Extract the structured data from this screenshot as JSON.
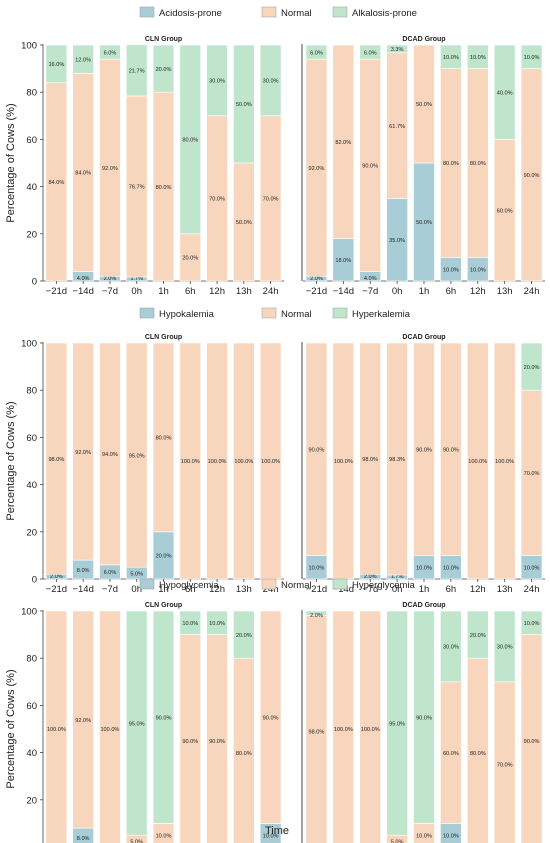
{
  "colors": {
    "low": "#a9cdd6",
    "normal": "#f8d6bd",
    "high": "#bfe6cc",
    "edge": "#ffffff",
    "axis": "#444444",
    "divider": "#666666",
    "text": "#222222"
  },
  "figure": {
    "xlabel": "Time",
    "ylabel": "Percentage of Cows (%)",
    "categories": [
      "−21d",
      "−14d",
      "−7d",
      "0h",
      "1h",
      "6h",
      "12h",
      "13h",
      "24h"
    ],
    "yticks": [
      0,
      20,
      40,
      60,
      80,
      100
    ]
  },
  "chart_data": [
    {
      "type": "bar",
      "stacked": true,
      "legend": [
        "Acidosis-prone",
        "Normal",
        "Alkalosis-prone"
      ],
      "panels": [
        {
          "title": "CLN Group",
          "series": [
            {
              "values": [
                0,
                4.0,
                2.0,
                1.7,
                0,
                0,
                0,
                0,
                0
              ]
            },
            {
              "values": [
                84.0,
                84.0,
                92.0,
                76.7,
                80.0,
                20.0,
                70.0,
                50.0,
                70.0
              ]
            },
            {
              "values": [
                16.0,
                12.0,
                6.0,
                21.7,
                20.0,
                80.0,
                30.0,
                50.0,
                30.0
              ]
            }
          ],
          "labels": [
            [
              "",
              "4.0%",
              "2.0%",
              "1.7%",
              "",
              "",
              "",
              "",
              ""
            ],
            [
              "84.0%",
              "84.0%",
              "92.0%",
              "76.7%",
              "80.0%",
              "20.0%",
              "70.0%",
              "50.0%",
              "70.0%"
            ],
            [
              "16.0%",
              "12.0%",
              "6.0%",
              "21.7%",
              "20.0%",
              "80.0%",
              "30.0%",
              "50.0%",
              "30.0%"
            ]
          ]
        },
        {
          "title": "DCAD Group",
          "series": [
            {
              "values": [
                2.0,
                18.0,
                4.0,
                35.0,
                50.0,
                10.0,
                10.0,
                0,
                0
              ]
            },
            {
              "values": [
                92.0,
                82.0,
                90.0,
                61.7,
                50.0,
                80.0,
                80.0,
                60.0,
                90.0
              ]
            },
            {
              "values": [
                6.0,
                0,
                6.0,
                3.3,
                0,
                10.0,
                10.0,
                40.0,
                10.0
              ]
            }
          ],
          "labels": [
            [
              "2.0%",
              "18.0%",
              "4.0%",
              "35.0%",
              "50.0%",
              "10.0%",
              "10.0%",
              "",
              ""
            ],
            [
              "92.0%",
              "82.0%",
              "90.0%",
              "61.7%",
              "50.0%",
              "80.0%",
              "80.0%",
              "60.0%",
              "90.0%"
            ],
            [
              "6.0%",
              "",
              "6.0%",
              "3.3%",
              "",
              "10.0%",
              "10.0%",
              "40.0%",
              "10.0%"
            ]
          ]
        }
      ]
    },
    {
      "type": "bar",
      "stacked": true,
      "legend": [
        "Hypokalemia",
        "Normal",
        "Hyperkalemia"
      ],
      "panels": [
        {
          "title": "CLN Group",
          "series": [
            {
              "values": [
                2.0,
                8.0,
                6.0,
                5.0,
                20.0,
                0,
                0,
                0,
                0
              ]
            },
            {
              "values": [
                98.0,
                92.0,
                94.0,
                95.0,
                80.0,
                100.0,
                100.0,
                100.0,
                100.0
              ]
            },
            {
              "values": [
                0,
                0,
                0,
                0,
                0,
                0,
                0,
                0,
                0
              ]
            }
          ],
          "labels": [
            [
              "2.0%",
              "8.0%",
              "6.0%",
              "5.0%",
              "20.0%",
              "",
              "",
              "",
              ""
            ],
            [
              "98.0%",
              "92.0%",
              "94.0%",
              "95.0%",
              "80.0%",
              "100.0%",
              "100.0%",
              "100.0%",
              "100.0%"
            ],
            [
              "",
              "",
              "",
              "",
              "",
              "",
              "",
              "",
              ""
            ]
          ]
        },
        {
          "title": "DCAD Group",
          "series": [
            {
              "values": [
                10.0,
                0,
                2.0,
                1.7,
                10.0,
                10.0,
                0,
                0,
                10.0
              ]
            },
            {
              "values": [
                90.0,
                100.0,
                98.0,
                98.3,
                90.0,
                90.0,
                100.0,
                100.0,
                70.0
              ]
            },
            {
              "values": [
                0,
                0,
                0,
                0,
                0,
                0,
                0,
                0,
                20.0
              ]
            }
          ],
          "labels": [
            [
              "10.0%",
              "",
              "2.0%",
              "1.7%",
              "10.0%",
              "10.0%",
              "",
              "",
              "10.0%"
            ],
            [
              "90.0%",
              "100.0%",
              "98.0%",
              "98.3%",
              "90.0%",
              "90.0%",
              "100.0%",
              "100.0%",
              "70.0%"
            ],
            [
              "",
              "",
              "",
              "",
              "",
              "",
              "",
              "",
              "20.0%"
            ]
          ]
        }
      ]
    },
    {
      "type": "bar",
      "stacked": true,
      "legend": [
        "Hypoglycemia",
        "Normal",
        "Hyperglycemia"
      ],
      "panels": [
        {
          "title": "CLN Group",
          "series": [
            {
              "values": [
                0,
                8.0,
                0,
                0,
                0,
                0,
                0,
                0,
                10.0
              ]
            },
            {
              "values": [
                100.0,
                92.0,
                100.0,
                5.0,
                10.0,
                90.0,
                90.0,
                80.0,
                90.0
              ]
            },
            {
              "values": [
                0,
                0,
                0,
                95.0,
                90.0,
                10.0,
                10.0,
                20.0,
                0
              ]
            }
          ],
          "labels": [
            [
              "",
              "8.0%",
              "",
              "",
              "",
              "",
              "",
              "",
              "10.0%"
            ],
            [
              "100.0%",
              "92.0%",
              "100.0%",
              "5.0%",
              "10.0%",
              "90.0%",
              "90.0%",
              "80.0%",
              "90.0%"
            ],
            [
              "",
              "",
              "",
              "95.0%",
              "90.0%",
              "10.0%",
              "10.0%",
              "20.0%",
              ""
            ]
          ]
        },
        {
          "title": "DCAD Group",
          "series": [
            {
              "values": [
                0,
                0,
                0,
                0,
                0,
                10.0,
                0,
                0,
                0
              ]
            },
            {
              "values": [
                98.0,
                100.0,
                100.0,
                5.0,
                10.0,
                60.0,
                80.0,
                70.0,
                90.0
              ]
            },
            {
              "values": [
                2.0,
                0,
                0,
                95.0,
                90.0,
                30.0,
                20.0,
                30.0,
                10.0
              ]
            }
          ],
          "labels": [
            [
              "",
              "",
              "",
              "",
              "",
              "10.0%",
              "",
              "",
              ""
            ],
            [
              "98.0%",
              "100.0%",
              "100.0%",
              "5.0%",
              "10.0%",
              "60.0%",
              "80.0%",
              "70.0%",
              "90.0%"
            ],
            [
              "2.0%",
              "",
              "",
              "95.0%",
              "90.0%",
              "30.0%",
              "20.0%",
              "30.0%",
              "10.0%"
            ]
          ]
        }
      ]
    }
  ]
}
